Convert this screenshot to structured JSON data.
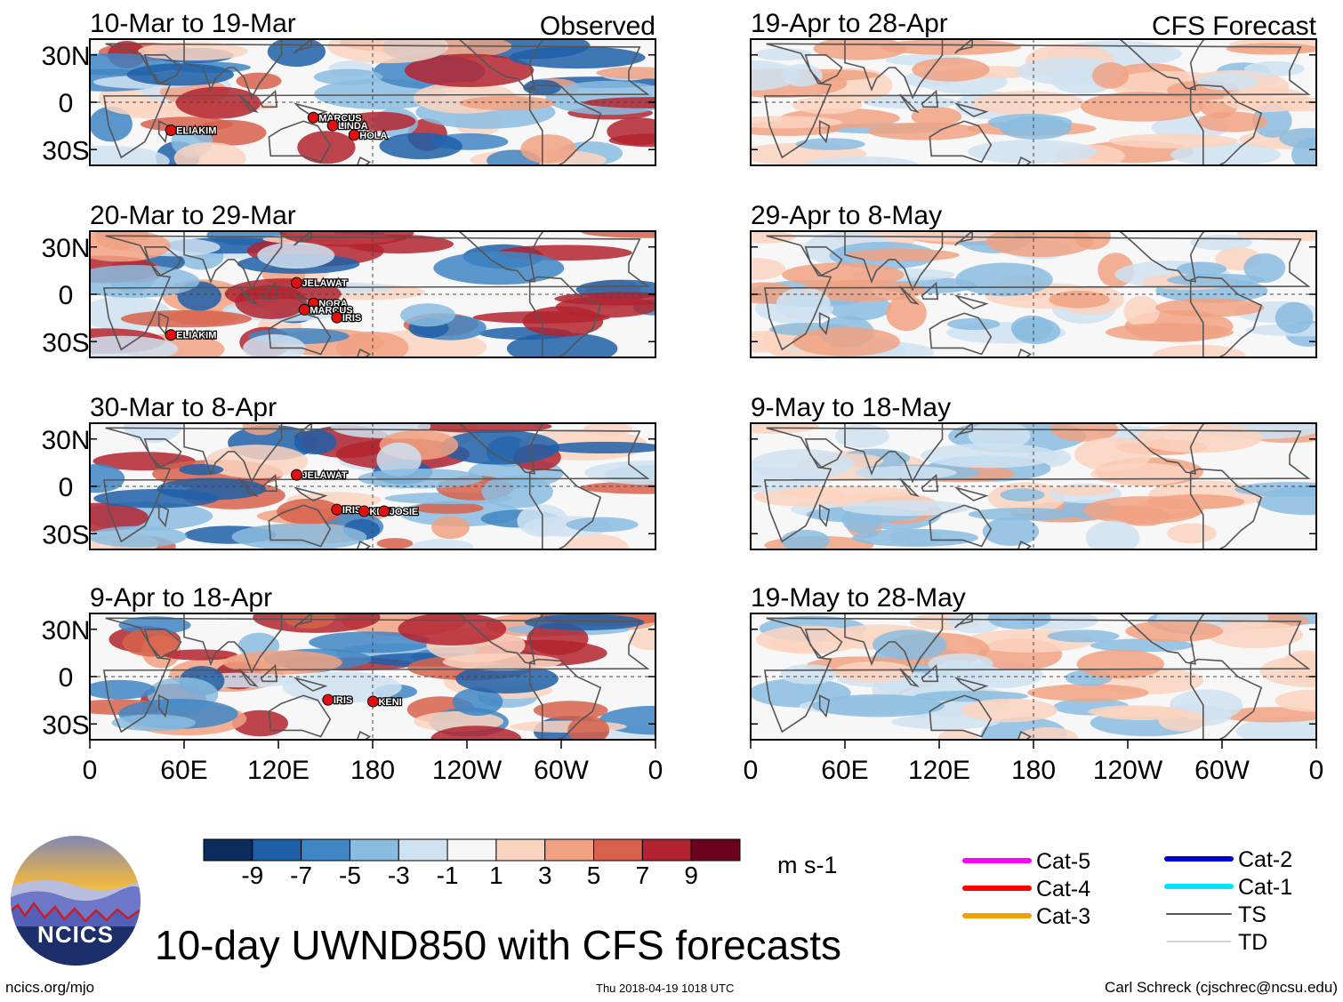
{
  "chart_data": {
    "type": "heatmap",
    "title": "10-day UWND850 with CFS forecasts",
    "variable": "UWND850",
    "units": "m s-1",
    "x_ticks": [
      "0",
      "60E",
      "120E",
      "180",
      "120W",
      "60W",
      "0"
    ],
    "y_ticks": [
      "30N",
      "0",
      "30S"
    ],
    "colorbar": {
      "tick_labels": [
        "-9",
        "-7",
        "-5",
        "-3",
        "-1",
        "1",
        "3",
        "5",
        "7",
        "9"
      ],
      "levels": [
        -11,
        -9,
        -7,
        -5,
        -3,
        -1,
        1,
        3,
        5,
        7,
        9,
        11
      ],
      "colors": [
        "#0c2c5e",
        "#1f5fa8",
        "#3f86c4",
        "#89bce0",
        "#cfe2f1",
        "#f7f7f7",
        "#fbd4c0",
        "#f1a283",
        "#d7614b",
        "#b3232f",
        "#6a0220"
      ]
    },
    "legend": [
      {
        "label": "Cat-5",
        "color": "#ff00ff"
      },
      {
        "label": "Cat-4",
        "color": "#ff0000"
      },
      {
        "label": "Cat-3",
        "color": "#f0a000"
      },
      {
        "label": "Cat-2",
        "color": "#0000d0"
      },
      {
        "label": "Cat-1",
        "color": "#00e5ff"
      },
      {
        "label": "TS",
        "color": "#555555"
      },
      {
        "label": "TD",
        "color": "#aaaaaa"
      }
    ],
    "panels": [
      {
        "id": "obs1",
        "title": "10-Mar to 19-Mar",
        "corner_label": "Observed",
        "kind": "observed",
        "storms": [
          "ELIAKIM",
          "MARCUS",
          "LINDA",
          "HOLA"
        ]
      },
      {
        "id": "obs2",
        "title": "20-Mar to 29-Mar",
        "corner_label": "",
        "kind": "observed",
        "storms": [
          "JELAWAT",
          "NORA",
          "MARCUS",
          "IRIS",
          "ELIAKIM"
        ]
      },
      {
        "id": "obs3",
        "title": "30-Mar to 8-Apr",
        "corner_label": "",
        "kind": "observed",
        "storms": [
          "JELAWAT",
          "IRIS",
          "KENI",
          "JOSIE"
        ]
      },
      {
        "id": "obs4",
        "title": "9-Apr to 18-Apr",
        "corner_label": "",
        "kind": "observed",
        "storms": [
          "IRIS",
          "KENI"
        ]
      },
      {
        "id": "fc1",
        "title": "19-Apr to 28-Apr",
        "corner_label": "CFS Forecast",
        "kind": "forecast",
        "storms": []
      },
      {
        "id": "fc2",
        "title": "29-Apr to 8-May",
        "corner_label": "",
        "kind": "forecast",
        "storms": []
      },
      {
        "id": "fc3",
        "title": "9-May to 18-May",
        "corner_label": "",
        "kind": "forecast",
        "storms": []
      },
      {
        "id": "fc4",
        "title": "19-May to 28-May",
        "corner_label": "",
        "kind": "forecast",
        "storms": []
      }
    ]
  },
  "logo": {
    "text": "NCICS"
  },
  "footer": {
    "left": "ncics.org/mjo",
    "middle": "Thu 2018-04-19 1018 UTC",
    "right": "Carl Schreck (cjschrec@ncsu.edu)"
  }
}
